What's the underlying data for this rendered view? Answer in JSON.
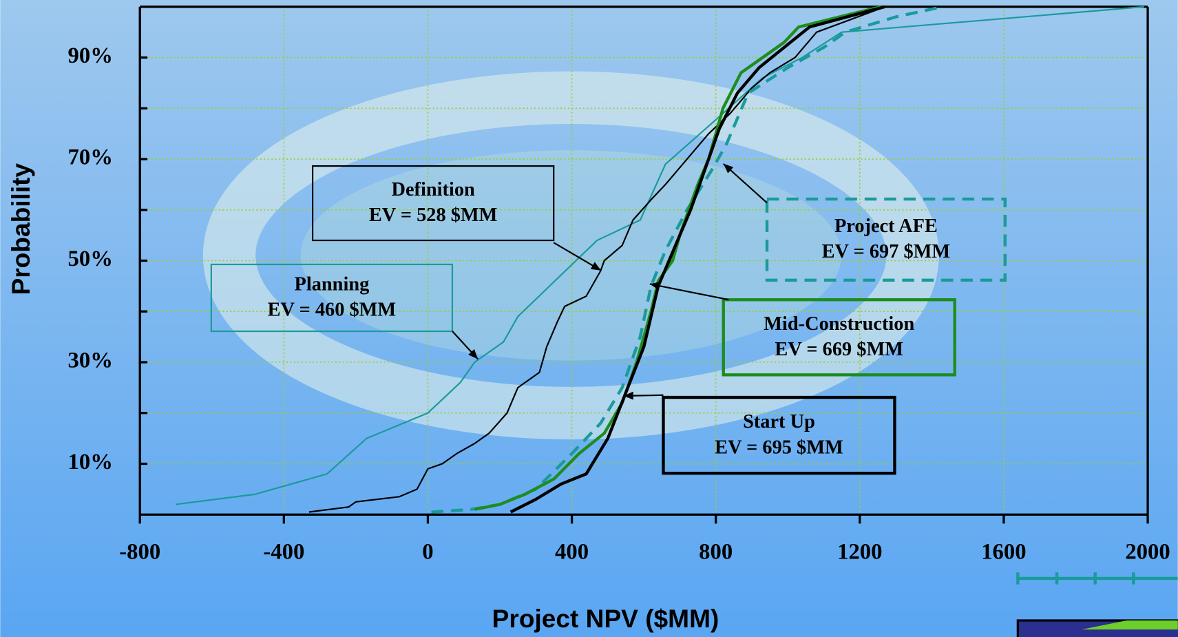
{
  "chart_data": {
    "type": "line",
    "xlabel": "Project NPV  ($MM)",
    "ylabel": "Probability",
    "xlim": [
      -800,
      2000
    ],
    "xticks": [
      -800,
      -400,
      0,
      400,
      800,
      1200,
      1600,
      2000
    ],
    "ylim": [
      0,
      100
    ],
    "yticks": [
      {
        "value": 10,
        "label": "10%"
      },
      {
        "value": 30,
        "label": "30%"
      },
      {
        "value": 50,
        "label": "50%"
      },
      {
        "value": 70,
        "label": "70%"
      },
      {
        "value": 90,
        "label": "90%"
      }
    ],
    "y_minor_ticks": [
      20,
      40,
      60,
      80
    ],
    "grid": true,
    "series": [
      {
        "name": "Planning",
        "annotation": "EV = 460 $MM",
        "color": "#1a9a9a",
        "width": 2,
        "dashed": false,
        "x": [
          -700,
          -480,
          -280,
          -170,
          0,
          90,
          130,
          210,
          250,
          470,
          590,
          660,
          820,
          930,
          1040,
          1150,
          1990
        ],
        "values": [
          2,
          4,
          8,
          15,
          20,
          26,
          30,
          34,
          39,
          54,
          58,
          69,
          79,
          86,
          90,
          95,
          100
        ]
      },
      {
        "name": "Definition",
        "annotation": "EV = 528 $MM",
        "color": "#000000",
        "width": 2,
        "dashed": false,
        "x": [
          -330,
          -220,
          -200,
          -80,
          -30,
          0,
          40,
          80,
          130,
          170,
          220,
          250,
          310,
          330,
          360,
          380,
          440,
          480,
          490,
          540,
          570,
          620,
          660,
          720,
          780,
          840,
          900,
          950,
          1020,
          1080,
          1270
        ],
        "values": [
          0.5,
          1.5,
          2.5,
          3.5,
          5,
          9,
          10,
          12,
          14,
          16,
          20,
          25,
          28,
          33,
          38,
          41,
          43,
          48,
          50,
          53,
          58,
          62,
          65,
          70,
          75,
          79,
          84,
          87,
          90,
          95,
          100
        ]
      },
      {
        "name": "Project AFE",
        "annotation": "EV = 697 $MM",
        "color": "#1a9a9a",
        "width": 4,
        "dashed": true,
        "x": [
          10,
          120,
          200,
          300,
          400,
          480,
          540,
          590,
          620,
          660,
          720,
          790,
          830,
          890,
          1000,
          1100,
          1160,
          1300,
          1430
        ],
        "values": [
          0.5,
          1,
          2,
          5,
          12,
          18,
          25,
          35,
          45,
          52,
          60,
          68,
          73,
          83,
          88,
          92,
          95,
          98,
          100
        ]
      },
      {
        "name": "Mid-Construction",
        "annotation": "EV = 669 $MM",
        "color": "#1e8c1e",
        "width": 4,
        "dashed": false,
        "x": [
          130,
          200,
          270,
          350,
          420,
          490,
          540,
          580,
          620,
          640,
          680,
          700,
          750,
          780,
          820,
          870,
          930,
          990,
          1030,
          1200,
          1260
        ],
        "values": [
          1,
          2,
          4,
          7,
          12,
          16,
          22,
          30,
          40,
          46,
          50,
          55,
          65,
          70,
          80,
          87,
          90,
          93,
          96,
          99,
          100
        ]
      },
      {
        "name": "Start Up",
        "annotation": "EV = 695 $MM",
        "color": "#000000",
        "width": 4,
        "dashed": false,
        "x": [
          230,
          300,
          370,
          440,
          500,
          550,
          600,
          640,
          670,
          700,
          730,
          770,
          810,
          860,
          920,
          990,
          1060,
          1270
        ],
        "values": [
          0.5,
          3,
          6,
          8,
          15,
          24,
          33,
          45,
          50,
          55,
          60,
          68,
          76,
          83,
          88,
          92,
          96,
          100
        ]
      }
    ]
  }
}
